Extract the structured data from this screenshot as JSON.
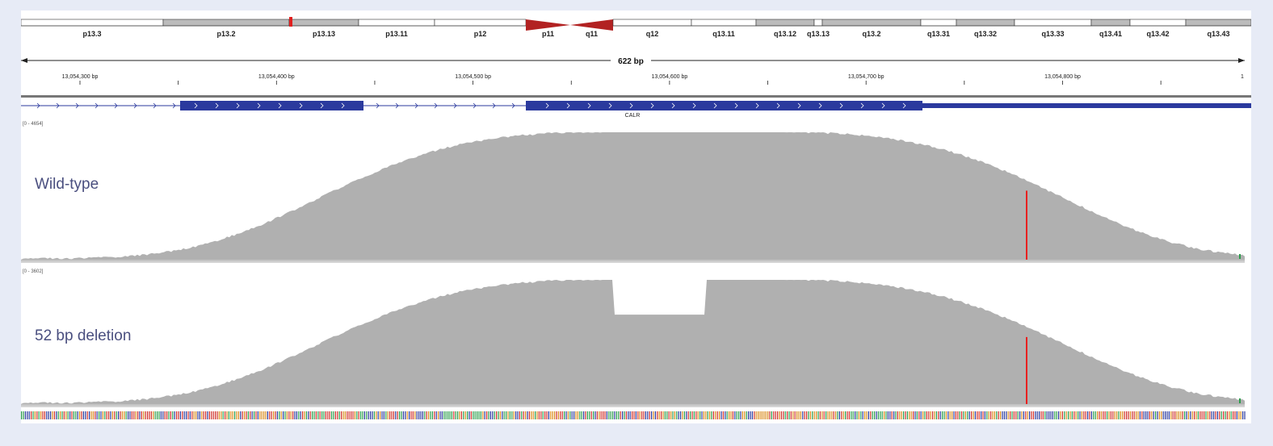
{
  "ideogram": {
    "bands": [
      {
        "label": "p13.3",
        "start": 0,
        "end": 176,
        "fill": "#ffffff"
      },
      {
        "label": "p13.2",
        "start": 176,
        "end": 332,
        "fill": "#bbbbbb"
      },
      {
        "label": "p13.13",
        "start": 332,
        "end": 418,
        "fill": "#bbbbbb"
      },
      {
        "label": "p13.11",
        "start": 418,
        "end": 512,
        "fill": "#ffffff"
      },
      {
        "label": "p12",
        "start": 512,
        "end": 625,
        "fill": "#ffffff"
      },
      {
        "label": "p11",
        "start": 625,
        "end": 680,
        "fill": "#ffffff",
        "centromere": "p"
      },
      {
        "label": "q11",
        "start": 680,
        "end": 733,
        "fill": "#ffffff",
        "centromere": "q"
      },
      {
        "label": "q12",
        "start": 733,
        "end": 830,
        "fill": "#ffffff"
      },
      {
        "label": "q13.11",
        "start": 830,
        "end": 910,
        "fill": "#ffffff"
      },
      {
        "label": "q13.12",
        "start": 910,
        "end": 982,
        "fill": "#bbbbbb"
      },
      {
        "label": "q13.13",
        "start": 982,
        "end": 992,
        "fill": "#ffffff"
      },
      {
        "label": "q13.2",
        "start": 992,
        "end": 1114,
        "fill": "#bbbbbb"
      },
      {
        "label": "q13.31",
        "start": 1114,
        "end": 1158,
        "fill": "#ffffff"
      },
      {
        "label": "q13.32",
        "start": 1158,
        "end": 1230,
        "fill": "#bbbbbb"
      },
      {
        "label": "q13.33",
        "start": 1230,
        "end": 1325,
        "fill": "#ffffff"
      },
      {
        "label": "q13.41",
        "start": 1325,
        "end": 1373,
        "fill": "#bbbbbb"
      },
      {
        "label": "q13.42",
        "start": 1373,
        "end": 1442,
        "fill": "#ffffff"
      },
      {
        "label": "q13.43",
        "start": 1442,
        "end": 1523,
        "fill": "#bbbbbb"
      }
    ],
    "current_region_color": "#e0201f",
    "centromere_color": "#b22222"
  },
  "ruler": {
    "span_label": "622 bp",
    "tick_labels": [
      "13,054,300 bp",
      "13,054,400 bp",
      "13,054,500 bp",
      "13,054,600 bp",
      "13,054,700 bp",
      "13,054,800 bp",
      "1"
    ]
  },
  "gene": {
    "name": "CALR",
    "strand": "+",
    "color": "#2b3a9e"
  },
  "tracks": [
    {
      "id": "wt",
      "label": "Wild-type",
      "range": "[0 - 4654]",
      "color": "#b0b0b0",
      "mismatch_color": "#e8201f"
    },
    {
      "id": "del",
      "label": "52 bp deletion",
      "range": "[0 - 3602]",
      "color": "#b0b0b0",
      "mismatch_color": "#e8201f"
    }
  ]
}
